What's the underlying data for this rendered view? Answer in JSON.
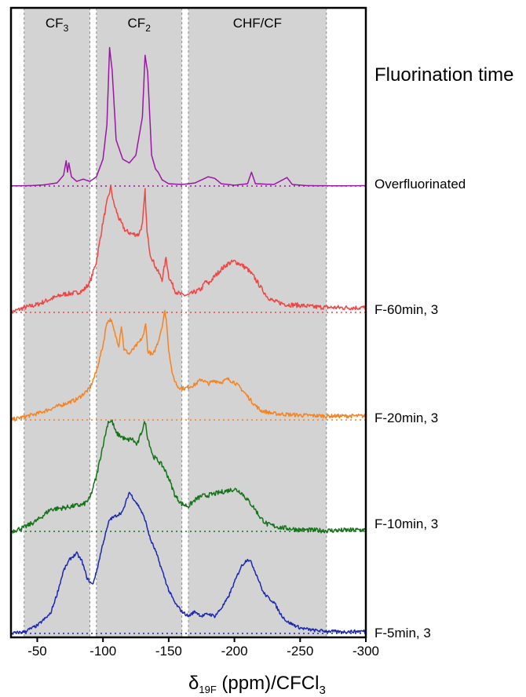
{
  "chart_data": {
    "type": "line",
    "title": "",
    "legend_title": "Fluorination time",
    "xlabel": {
      "symbol": "δ",
      "subscript": "19F",
      "rest": " (ppm)/CFCl",
      "tail_subscript": "3"
    },
    "xlim": [
      -30,
      -300
    ],
    "xticks": [
      -50,
      -100,
      -150,
      -200,
      -250,
      -300
    ],
    "xtick_labels": [
      "-50",
      "-100",
      "-150",
      "-200",
      "-250",
      "-300"
    ],
    "regions": [
      {
        "name": "CF",
        "sub": "3",
        "from": -40,
        "to": -90
      },
      {
        "name": "CF",
        "sub": "2",
        "from": -95,
        "to": -160
      },
      {
        "name": "CHF/CF",
        "sub": "",
        "from": -165,
        "to": -270
      }
    ],
    "region_color": "#d3d3d3",
    "series": [
      {
        "name": "Overfluorinated",
        "color": "#9b16a5",
        "noise": 0.0,
        "baseline": [
          -30,
          0.0,
          -300,
          0.0
        ],
        "points": [
          [
            -30,
            0.2
          ],
          [
            -45,
            0.5
          ],
          [
            -55,
            1.5
          ],
          [
            -65,
            4
          ],
          [
            -70,
            14
          ],
          [
            -72,
            33
          ],
          [
            -73,
            18
          ],
          [
            -74,
            30
          ],
          [
            -76,
            12
          ],
          [
            -80,
            6
          ],
          [
            -85,
            9
          ],
          [
            -90,
            6
          ],
          [
            -95,
            12
          ],
          [
            -100,
            35
          ],
          [
            -103,
            80
          ],
          [
            -105,
            180
          ],
          [
            -107,
            150
          ],
          [
            -110,
            60
          ],
          [
            -115,
            35
          ],
          [
            -120,
            30
          ],
          [
            -125,
            40
          ],
          [
            -130,
            90
          ],
          [
            -132,
            170
          ],
          [
            -134,
            148
          ],
          [
            -137,
            40
          ],
          [
            -140,
            22
          ],
          [
            -142,
            18
          ],
          [
            -145,
            8
          ],
          [
            -150,
            3
          ],
          [
            -160,
            2
          ],
          [
            -170,
            4
          ],
          [
            -180,
            12
          ],
          [
            -185,
            10
          ],
          [
            -190,
            3
          ],
          [
            -200,
            1
          ],
          [
            -210,
            3
          ],
          [
            -213,
            18
          ],
          [
            -216,
            3
          ],
          [
            -230,
            2
          ],
          [
            -240,
            11
          ],
          [
            -244,
            2
          ],
          [
            -255,
            0.5
          ],
          [
            -280,
            0.3
          ],
          [
            -300,
            0.5
          ]
        ]
      },
      {
        "name": "F-60min, 3",
        "color": "#ef4645",
        "noise": 3.0,
        "baseline": [
          -30,
          0.0,
          -300,
          0.0
        ],
        "points": [
          [
            -30,
            0
          ],
          [
            -40,
            6
          ],
          [
            -50,
            10
          ],
          [
            -60,
            17
          ],
          [
            -70,
            23
          ],
          [
            -80,
            25
          ],
          [
            -85,
            28
          ],
          [
            -90,
            38
          ],
          [
            -95,
            65
          ],
          [
            -100,
            115
          ],
          [
            -103,
            140
          ],
          [
            -106,
            160
          ],
          [
            -108,
            140
          ],
          [
            -112,
            120
          ],
          [
            -117,
            104
          ],
          [
            -122,
            100
          ],
          [
            -127,
            99
          ],
          [
            -130,
            112
          ],
          [
            -132,
            155
          ],
          [
            -133.5,
            102
          ],
          [
            -136,
            74
          ],
          [
            -140,
            58
          ],
          [
            -145,
            42
          ],
          [
            -148,
            70
          ],
          [
            -150,
            46
          ],
          [
            -155,
            27
          ],
          [
            -160,
            22
          ],
          [
            -165,
            22
          ],
          [
            -170,
            26
          ],
          [
            -175,
            30
          ],
          [
            -178,
            40
          ],
          [
            -180,
            36
          ],
          [
            -185,
            46
          ],
          [
            -190,
            55
          ],
          [
            -195,
            62
          ],
          [
            -200,
            65
          ],
          [
            -205,
            61
          ],
          [
            -210,
            55
          ],
          [
            -215,
            45
          ],
          [
            -220,
            32
          ],
          [
            -225,
            20
          ],
          [
            -230,
            14
          ],
          [
            -240,
            10
          ],
          [
            -250,
            9
          ],
          [
            -260,
            7
          ],
          [
            -280,
            6
          ],
          [
            -300,
            6
          ]
        ]
      },
      {
        "name": "F-20min, 3",
        "color": "#f58322",
        "noise": 2.5,
        "baseline": [
          -30,
          0.0,
          -300,
          0.0
        ],
        "points": [
          [
            -30,
            0
          ],
          [
            -40,
            4
          ],
          [
            -50,
            8
          ],
          [
            -60,
            14
          ],
          [
            -70,
            20
          ],
          [
            -80,
            26
          ],
          [
            -90,
            40
          ],
          [
            -95,
            62
          ],
          [
            -100,
            95
          ],
          [
            -103,
            125
          ],
          [
            -106,
            128
          ],
          [
            -109,
            110
          ],
          [
            -112,
            95
          ],
          [
            -114,
            120
          ],
          [
            -116,
            90
          ],
          [
            -120,
            84
          ],
          [
            -124,
            92
          ],
          [
            -128,
            100
          ],
          [
            -131,
            108
          ],
          [
            -132.5,
            125
          ],
          [
            -134,
            88
          ],
          [
            -138,
            82
          ],
          [
            -142,
            100
          ],
          [
            -145,
            120
          ],
          [
            -147,
            138
          ],
          [
            -148,
            130
          ],
          [
            -150,
            90
          ],
          [
            -153,
            56
          ],
          [
            -157,
            42
          ],
          [
            -162,
            40
          ],
          [
            -170,
            45
          ],
          [
            -175,
            52
          ],
          [
            -180,
            46
          ],
          [
            -185,
            50
          ],
          [
            -190,
            48
          ],
          [
            -195,
            52
          ],
          [
            -200,
            48
          ],
          [
            -205,
            40
          ],
          [
            -210,
            30
          ],
          [
            -215,
            20
          ],
          [
            -220,
            12
          ],
          [
            -230,
            8
          ],
          [
            -250,
            6
          ],
          [
            -270,
            5
          ],
          [
            -300,
            5
          ]
        ]
      },
      {
        "name": "F-10min, 3",
        "color": "#15731a",
        "noise": 3.0,
        "baseline": [
          -30,
          0.0,
          -300,
          0.0
        ],
        "points": [
          [
            -30,
            0
          ],
          [
            -40,
            5
          ],
          [
            -50,
            14
          ],
          [
            -60,
            28
          ],
          [
            -70,
            30
          ],
          [
            -80,
            33
          ],
          [
            -85,
            34
          ],
          [
            -90,
            42
          ],
          [
            -95,
            70
          ],
          [
            -100,
            110
          ],
          [
            -104,
            140
          ],
          [
            -107,
            140
          ],
          [
            -110,
            125
          ],
          [
            -113,
            122
          ],
          [
            -118,
            116
          ],
          [
            -122,
            118
          ],
          [
            -126,
            110
          ],
          [
            -130,
            130
          ],
          [
            -132,
            140
          ],
          [
            -134,
            120
          ],
          [
            -138,
            96
          ],
          [
            -142,
            90
          ],
          [
            -146,
            82
          ],
          [
            -150,
            68
          ],
          [
            -155,
            45
          ],
          [
            -160,
            35
          ],
          [
            -165,
            32
          ],
          [
            -170,
            40
          ],
          [
            -175,
            45
          ],
          [
            -180,
            46
          ],
          [
            -190,
            50
          ],
          [
            -195,
            52
          ],
          [
            -200,
            54
          ],
          [
            -205,
            50
          ],
          [
            -210,
            40
          ],
          [
            -215,
            30
          ],
          [
            -220,
            17
          ],
          [
            -225,
            9
          ],
          [
            -235,
            5
          ],
          [
            -250,
            2
          ],
          [
            -270,
            1
          ],
          [
            -300,
            2
          ]
        ]
      },
      {
        "name": "F-5min, 3",
        "color": "#1b28b2",
        "noise": 2.0,
        "baseline": [
          -30,
          0.0,
          -300,
          0.0
        ],
        "points": [
          [
            -30,
            0
          ],
          [
            -40,
            2
          ],
          [
            -50,
            10
          ],
          [
            -60,
            25
          ],
          [
            -65,
            50
          ],
          [
            -70,
            80
          ],
          [
            -75,
            95
          ],
          [
            -80,
            102
          ],
          [
            -84,
            92
          ],
          [
            -88,
            70
          ],
          [
            -92,
            62
          ],
          [
            -95,
            78
          ],
          [
            -100,
            115
          ],
          [
            -105,
            145
          ],
          [
            -110,
            150
          ],
          [
            -115,
            155
          ],
          [
            -120,
            180
          ],
          [
            -124,
            170
          ],
          [
            -128,
            160
          ],
          [
            -132,
            145
          ],
          [
            -136,
            120
          ],
          [
            -140,
            105
          ],
          [
            -145,
            80
          ],
          [
            -150,
            55
          ],
          [
            -155,
            38
          ],
          [
            -160,
            28
          ],
          [
            -165,
            22
          ],
          [
            -170,
            28
          ],
          [
            -175,
            22
          ],
          [
            -180,
            25
          ],
          [
            -185,
            22
          ],
          [
            -190,
            32
          ],
          [
            -195,
            45
          ],
          [
            -200,
            65
          ],
          [
            -205,
            85
          ],
          [
            -210,
            95
          ],
          [
            -213,
            90
          ],
          [
            -218,
            70
          ],
          [
            -222,
            52
          ],
          [
            -226,
            45
          ],
          [
            -230,
            40
          ],
          [
            -235,
            25
          ],
          [
            -240,
            15
          ],
          [
            -250,
            7
          ],
          [
            -260,
            4
          ],
          [
            -280,
            2
          ],
          [
            -300,
            3
          ]
        ]
      }
    ]
  }
}
